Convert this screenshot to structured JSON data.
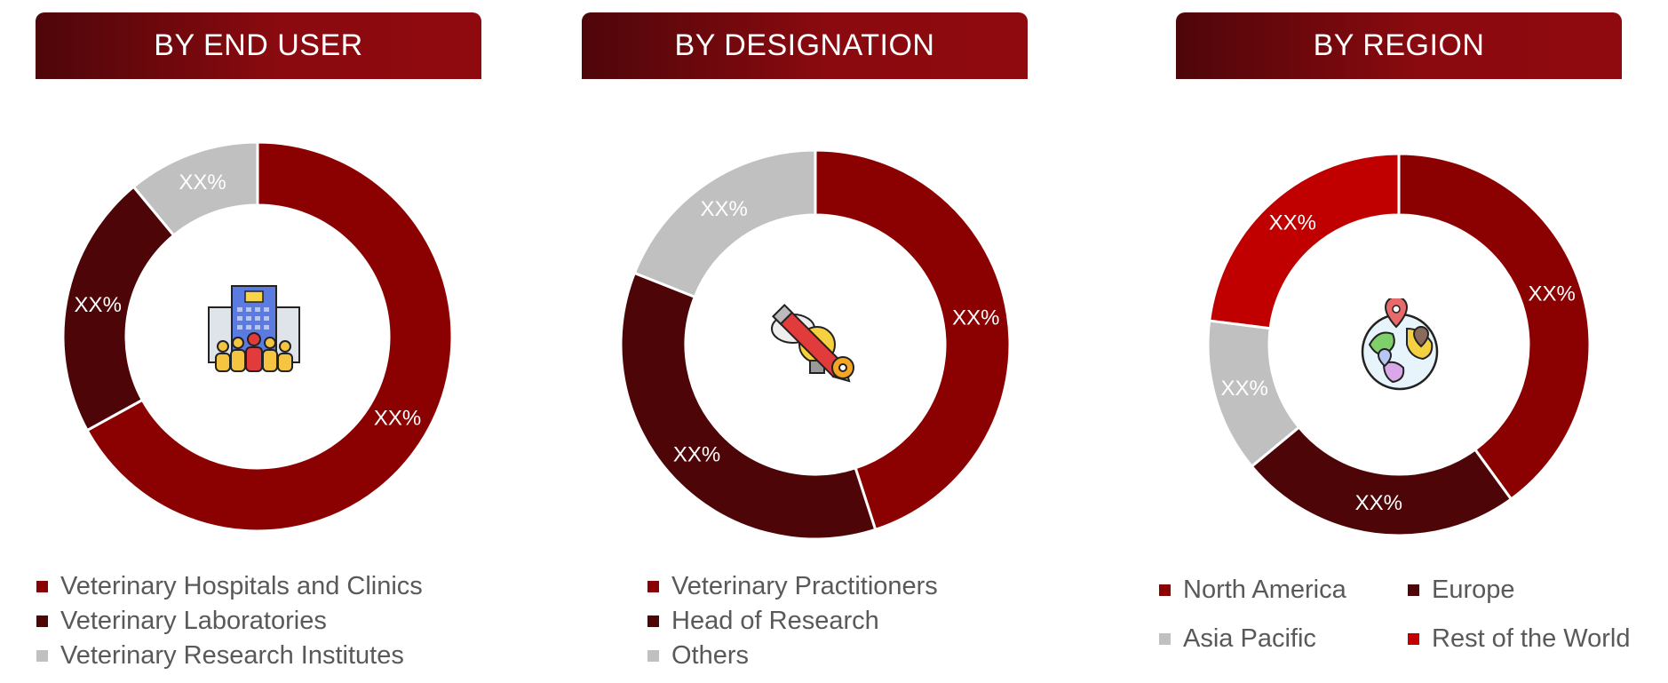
{
  "colors": {
    "dark_red": "#8b0000",
    "maroon": "#4d0508",
    "gray": "#c0c0c0",
    "bright_red": "#c00000"
  },
  "chart_data": [
    {
      "type": "pie",
      "title": "BY END USER",
      "icon": "hospital-building-icon",
      "categories": [
        "Veterinary Hospitals and Clinics",
        "Veterinary Laboratories",
        "Veterinary Research Institutes"
      ],
      "values": [
        67,
        22,
        11
      ],
      "data_labels": [
        "XX%",
        "XX%",
        "XX%"
      ],
      "colors": [
        "#8b0000",
        "#4d0508",
        "#c0c0c0"
      ],
      "legend_placement": "bottom"
    },
    {
      "type": "pie",
      "title": "BY DESIGNATION",
      "icon": "idea-pencil-gear-icon",
      "categories": [
        "Veterinary Practitioners",
        "Head of Research",
        "Others"
      ],
      "values": [
        45,
        36,
        19
      ],
      "data_labels": [
        "XX%",
        "XX%",
        "XX%"
      ],
      "colors": [
        "#8b0000",
        "#4d0508",
        "#c0c0c0"
      ],
      "legend_placement": "bottom"
    },
    {
      "type": "pie",
      "title": "BY REGION",
      "icon": "globe-location-icon",
      "categories": [
        "North America",
        "Europe",
        "Asia Pacific",
        "Rest of the World"
      ],
      "values": [
        40,
        24,
        13,
        23
      ],
      "data_labels": [
        "XX%",
        "XX%",
        "XX%",
        "XX%"
      ],
      "colors": [
        "#8b0000",
        "#4d0508",
        "#c0c0c0",
        "#c00000"
      ],
      "legend_placement": "bottom"
    }
  ]
}
